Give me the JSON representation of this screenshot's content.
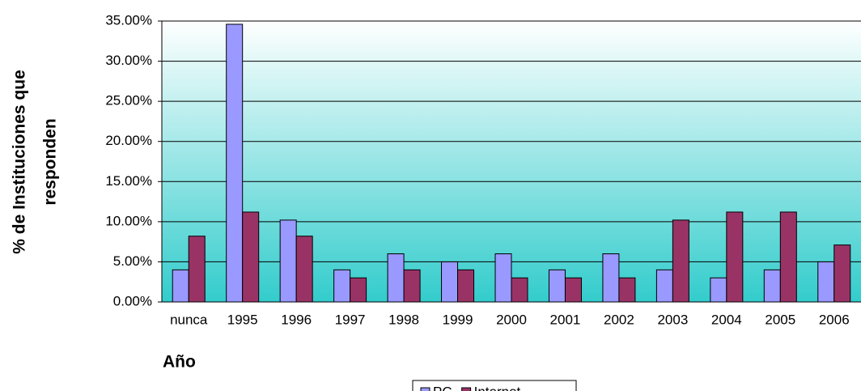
{
  "chart_data": {
    "type": "bar",
    "y_label": [
      "% de Instituciones que",
      "responden"
    ],
    "x_label": "Año",
    "categories": [
      "nunca",
      "1995",
      "1996",
      "1997",
      "1998",
      "1999",
      "2000",
      "2001",
      "2002",
      "2003",
      "2004",
      "2005",
      "2006"
    ],
    "series": [
      {
        "name": "PC",
        "color": "#9999ff",
        "values": [
          4,
          34.6,
          10.2,
          4,
          6,
          5,
          6,
          4,
          6,
          4,
          3,
          4,
          5
        ]
      },
      {
        "name": "Internet",
        "color": "#993366",
        "values": [
          8.2,
          11.2,
          8.2,
          3,
          4,
          4,
          3,
          3,
          3,
          10.2,
          11.2,
          11.2,
          7.1
        ]
      }
    ],
    "ylim": [
      0,
      35
    ],
    "yticks": [
      {
        "value": 0,
        "label": "0.00%"
      },
      {
        "value": 5,
        "label": "5.00%"
      },
      {
        "value": 10,
        "label": "10.00%"
      },
      {
        "value": 15,
        "label": "15.00%"
      },
      {
        "value": 20,
        "label": "20.00%"
      },
      {
        "value": 25,
        "label": "25.00%"
      },
      {
        "value": 30,
        "label": "30.00%"
      },
      {
        "value": 35,
        "label": "35.00%"
      }
    ],
    "grid": true,
    "legend": "bottom"
  }
}
